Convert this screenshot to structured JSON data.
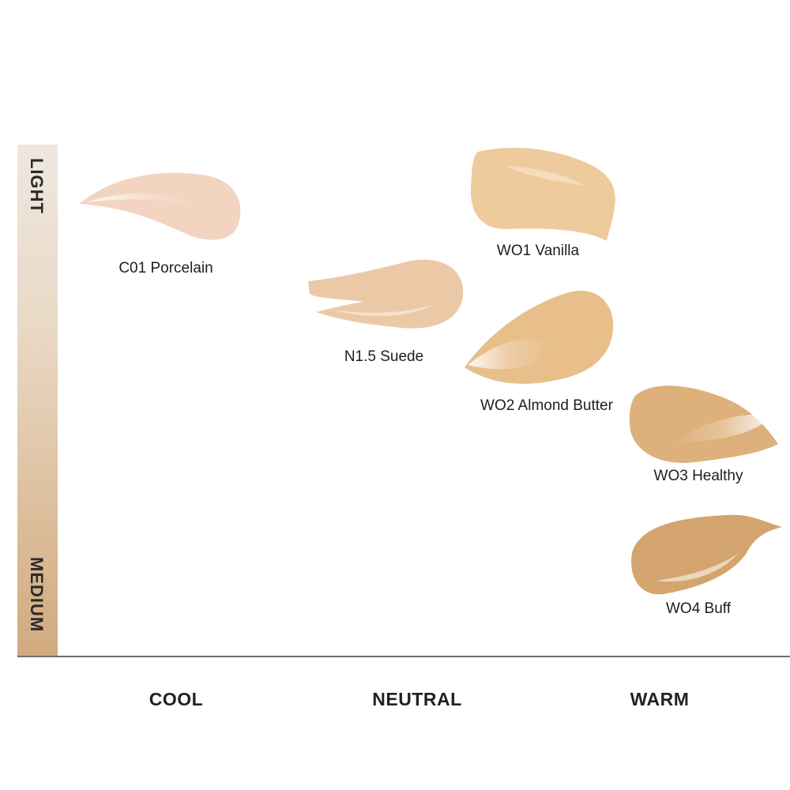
{
  "y_axis": {
    "top_label": "LIGHT",
    "bottom_label": "MEDIUM"
  },
  "x_axis": {
    "labels": [
      "COOL",
      "NEUTRAL",
      "WARM"
    ]
  },
  "shades": [
    {
      "name": "C01 Porcelain",
      "undertone": "COOL",
      "color": "#f3d4c0"
    },
    {
      "name": "N1.5 Suede",
      "undertone": "NEUTRAL",
      "color": "#ecc9a6"
    },
    {
      "name": "WO1 Vanilla",
      "undertone": "WARM",
      "color": "#efca9c"
    },
    {
      "name": "WO2 Almond Butter",
      "undertone": "WARM",
      "color": "#e8bf8b"
    },
    {
      "name": "WO3 Healthy",
      "undertone": "WARM",
      "color": "#ddb07c"
    },
    {
      "name": "WO4 Buff",
      "undertone": "WARM",
      "color": "#d3a46e"
    }
  ]
}
